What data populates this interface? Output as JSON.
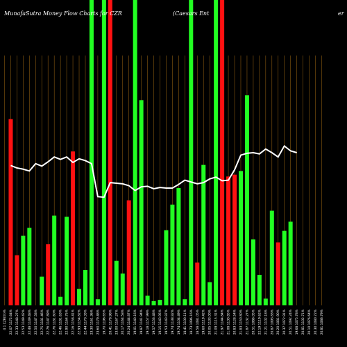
{
  "header": {
    "title_left": "MunafaSutra  Money Flow  Charts for CZR",
    "title_right": "(Caesars Ent",
    "title_far_right": "er"
  },
  "colors": {
    "background": "#000000",
    "up": "#22ff22",
    "down": "#ff1111",
    "line": "#ffffff",
    "grid": "#8a5a10"
  },
  "chart_data": {
    "type": "bar",
    "title": "MunafaSutra  Money Flow  Charts for CZR",
    "categories": [
      "Fri 11 Sep 2020",
      "Thu 10 Sep 2020",
      "Wed 09 Sep 2020",
      "Tue 08 Sep 2020",
      "Fri 04 Sep 2020",
      "Thu 03 Sep 2020",
      "Wed 02 Sep 2020",
      "Tue 01 Sep 2020",
      "Mon 31 Aug 2020",
      "Fri 28 Aug 2020",
      "Thu 27 Aug 2020",
      "Wed 26 Aug 2020",
      "Tue 25 Aug 2020",
      "Mon 24 Aug 2020",
      "Fri 21 Aug 2020",
      "Thu 20 Aug 2020",
      "Wed 19 Aug 2020",
      "Tue 18 Aug 2020",
      "Mon 17 Aug 2020",
      "Fri 14 Aug 2020",
      "Thu 13 Aug 2020",
      "Wed 12 Aug 2020",
      "Tue 11 Aug 2020",
      "Mon 10 Aug 2020",
      "Fri 07 Aug 2020",
      "Thu 06 Aug 2020",
      "Wed 05 Aug 2020",
      "Tue 04 Aug 2020",
      "Mon 03 Aug 2020",
      "Fri 31 Jul 2020",
      "Thu 30 Jul 2020",
      "Wed 29 Jul 2020",
      "Tue 28 Jul 2020",
      "Mon 27 Jul 2020",
      "Fri 24 Jul 2020",
      "Thu 23 Jul 2020",
      "Wed 22 Jul 2020",
      "Tue 21 Jul 2020",
      "Mon 20 Jul 2020",
      "Fri 17 Jul 2020",
      "Thu 16 Jul 2020",
      "Wed 15 Jul 2020",
      "Tue 14 Jul 2020",
      "Mon 13 Jul 2020",
      "Fri 10 Jul 2020",
      "Thu 09 Jul 2020",
      "Wed 08 Jul 2020",
      "Tue 07 Jul 2020",
      "Mon 06 Jul 2020",
      "Thu 02 Jul 2020",
      "Wed 01 Jul 2020",
      "Tue 30 Jun 2020"
    ],
    "x_tick_labels": [
      "4 1 CZR(th)%",
      "22.07 1172.64%",
      "22.33 1148.27%",
      "22.53 1149.42%",
      "22.48 1149.48%",
      "22.50 1147.58%",
      "22.75 1181.46%",
      "22.76 1147.89%",
      "22.76 1181.60%",
      "22.46 1181.63%",
      "22.90 1164.75%",
      "22.16 1158.41%",
      "22.93 1154.82%",
      "22.44 1170.33%",
      "23.30 1161.36%",
      "23.60 1179.48%",
      "19.70 1196.65%",
      "20.41 1178.98%",
      "23.00 1167.27%",
      "20.17 1164.58%",
      "20.24 1144.87%",
      "19.01 1140.16%",
      "19.87 1141.94%",
      "19.18 1157.99%",
      "19.57 1156.48%",
      "19.15 1143.95%",
      "19.53 1143.87%",
      "19.74 1138.82%",
      "19.74 1104.49%",
      "18.41 1100.11%",
      "18.73 1096.16%",
      "18.58 1081.05%",
      "19.60 1119.42%",
      "20.05 1133.00%",
      "21.09 1115.31%",
      "21.97 1144.84%",
      "21.08 1133.85%",
      "20.83 1128.54%",
      "21.83 1150.80%",
      "21.87 1132.27%",
      "20.51 1086.05%",
      "22.19 1119.62%",
      "21.21 1102.18%",
      "20.87 1093.83%",
      "20.20 1081.90%",
      "20.37 1072.91%",
      "20.51 1092.24%",
      "19.68 1075.78%",
      "20.81 1102.71%",
      "20.10 1076.64%",
      "20.30 1080.72%",
      "20.81 1086.79%"
    ],
    "series": [
      {
        "kind": "bar",
        "values": [
          0,
          305,
          82,
          114,
          127,
          0,
          47,
          100,
          147,
          14,
          145,
          252,
          27,
          58,
          500,
          10,
          500,
          500,
          73,
          52,
          172,
          500,
          336,
          16,
          7,
          9,
          123,
          165,
          192,
          10,
          500,
          70,
          230,
          38,
          500,
          500,
          211,
          214,
          220,
          344,
          108,
          50,
          11,
          155,
          103,
          122,
          137,
          0,
          0,
          0,
          0,
          0
        ],
        "directions": [
          "up",
          "down",
          "down",
          "up",
          "up",
          "up",
          "up",
          "down",
          "up",
          "up",
          "up",
          "down",
          "up",
          "up",
          "up",
          "up",
          "up",
          "down",
          "up",
          "up",
          "down",
          "up",
          "up",
          "up",
          "up",
          "up",
          "up",
          "up",
          "up",
          "up",
          "up",
          "down",
          "up",
          "up",
          "up",
          "down",
          "down",
          "down",
          "up",
          "up",
          "up",
          "up",
          "up",
          "up",
          "down",
          "up",
          "up",
          "up",
          "up",
          "up",
          "up",
          "up"
        ]
      },
      {
        "kind": "line",
        "values": [
          0,
          229,
          225,
          223,
          220,
          232,
          228,
          235,
          243,
          239,
          243,
          234,
          240,
          237,
          232,
          178,
          177,
          201,
          200,
          199,
          196,
          188,
          194,
          195,
          191,
          193,
          192,
          192,
          198,
          205,
          202,
          199,
          201,
          207,
          210,
          204,
          205,
          222,
          246,
          249,
          250,
          248,
          256,
          250,
          243,
          261,
          253,
          250,
          0,
          0,
          0,
          0
        ]
      }
    ],
    "ylim": [
      0,
      500
    ],
    "grid": true,
    "xlabel": "",
    "ylabel": ""
  }
}
